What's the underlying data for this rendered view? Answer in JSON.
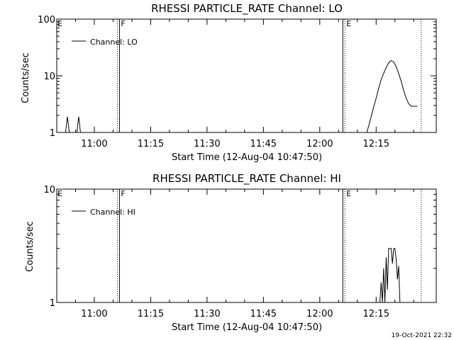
{
  "footer_timestamp": "19-Oct-2021 22:32",
  "chart_data": [
    {
      "type": "line",
      "title": "RHESSI PARTICLE_RATE Channel: LO",
      "xlabel": "Start Time (12-Aug-04 10:47:50)",
      "ylabel": "Counts/sec",
      "y_scale": "log",
      "ylim": [
        1,
        100
      ],
      "y_ticks": [
        1,
        10,
        100
      ],
      "y_tick_labels": [
        "1",
        "10",
        "100"
      ],
      "xlim": [
        "10:50:00",
        "12:31:00"
      ],
      "x_ticks": [
        "11:00",
        "11:15",
        "11:30",
        "11:45",
        "12:00",
        "12:15"
      ],
      "legend": "Channel: LO",
      "legend_position": "top-left",
      "annotations": [
        {
          "time": "10:50:00",
          "label": "E",
          "style": "none"
        },
        {
          "time": "11:06:30",
          "label": "F",
          "style": "dotted-solid"
        },
        {
          "time": "12:06:30",
          "label": "E",
          "style": "solid-dotted"
        },
        {
          "time": "12:27:00",
          "label": "",
          "style": "dotted"
        }
      ],
      "series": [
        {
          "name": "Channel: LO",
          "points": [
            [
              "10:52:20",
              1.0
            ],
            [
              "10:52:50",
              1.9
            ],
            [
              "10:53:20",
              1.0
            ],
            [
              "10:55:20",
              1.0
            ],
            [
              "10:55:50",
              1.9
            ],
            [
              "10:56:20",
              1.0
            ],
            [
              "12:12:30",
              1.0
            ],
            [
              "12:13:00",
              1.3
            ],
            [
              "12:13:40",
              1.9
            ],
            [
              "12:14:20",
              2.8
            ],
            [
              "12:15:00",
              4.0
            ],
            [
              "12:15:40",
              6.0
            ],
            [
              "12:16:20",
              8.5
            ],
            [
              "12:17:00",
              11.0
            ],
            [
              "12:17:40",
              14.0
            ],
            [
              "12:18:20",
              17.0
            ],
            [
              "12:19:00",
              18.5
            ],
            [
              "12:19:40",
              17.5
            ],
            [
              "12:20:20",
              14.5
            ],
            [
              "12:21:00",
              11.0
            ],
            [
              "12:21:40",
              8.0
            ],
            [
              "12:22:20",
              5.5
            ],
            [
              "12:23:00",
              4.0
            ],
            [
              "12:23:40",
              3.2
            ],
            [
              "12:24:20",
              2.9
            ],
            [
              "12:26:00",
              2.9
            ]
          ]
        }
      ]
    },
    {
      "type": "line",
      "title": "RHESSI PARTICLE_RATE Channel: HI",
      "xlabel": "Start Time (12-Aug-04 10:47:50)",
      "ylabel": "Counts/sec",
      "y_scale": "log",
      "ylim": [
        1,
        10
      ],
      "y_ticks": [
        1,
        10
      ],
      "y_tick_labels": [
        "1",
        "10"
      ],
      "xlim": [
        "10:50:00",
        "12:31:00"
      ],
      "x_ticks": [
        "11:00",
        "11:15",
        "11:30",
        "11:45",
        "12:00",
        "12:15"
      ],
      "legend": "Channel: HI",
      "legend_position": "top-left",
      "annotations": [
        {
          "time": "10:50:00",
          "label": "E",
          "style": "none"
        },
        {
          "time": "11:06:30",
          "label": "F",
          "style": "dotted-solid"
        },
        {
          "time": "12:06:30",
          "label": "E",
          "style": "solid-dotted"
        },
        {
          "time": "12:27:00",
          "label": "",
          "style": "dotted"
        }
      ],
      "series": [
        {
          "name": "Channel: HI",
          "points": [
            [
              "12:16:00",
              1.0
            ],
            [
              "12:16:20",
              1.5
            ],
            [
              "12:16:40",
              1.0
            ],
            [
              "12:17:00",
              2.0
            ],
            [
              "12:17:20",
              1.0
            ],
            [
              "12:17:40",
              2.5
            ],
            [
              "12:18:00",
              1.3
            ],
            [
              "12:18:20",
              3.0
            ],
            [
              "12:19:00",
              3.0
            ],
            [
              "12:19:20",
              2.2
            ],
            [
              "12:19:40",
              3.0
            ],
            [
              "12:20:00",
              3.0
            ],
            [
              "12:20:20",
              2.4
            ],
            [
              "12:20:40",
              1.6
            ],
            [
              "12:21:00",
              2.1
            ],
            [
              "12:21:20",
              1.0
            ]
          ]
        }
      ]
    }
  ]
}
